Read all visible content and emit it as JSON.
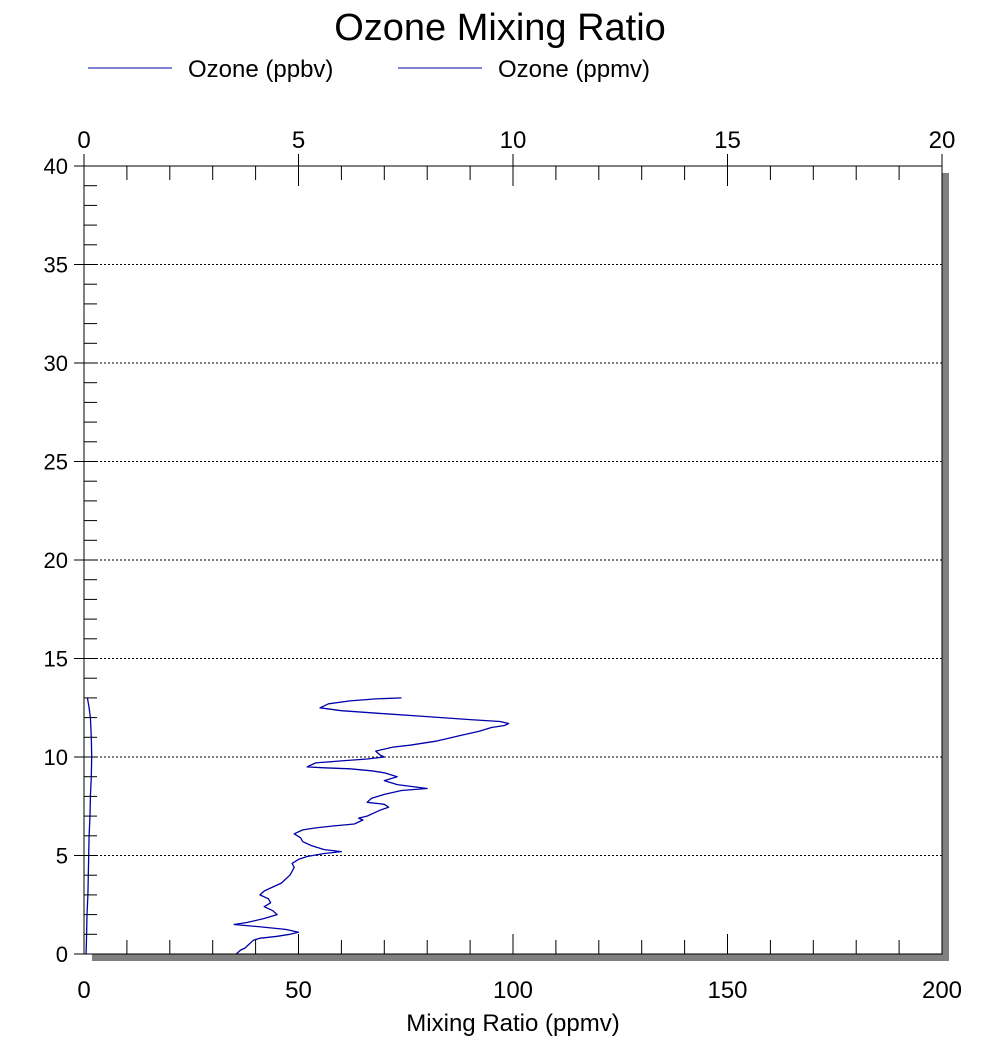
{
  "chart_data": {
    "type": "line",
    "title": "Ozone Mixing Ratio",
    "xlabel": "Mixing Ratio (ppmv)",
    "ylabel": "",
    "x_bottom": {
      "lim": [
        0,
        200
      ],
      "ticks": [
        0,
        50,
        100,
        150,
        200
      ],
      "minor_step": 10
    },
    "x_top": {
      "lim": [
        0,
        20
      ],
      "ticks": [
        0,
        5,
        10,
        15,
        20
      ],
      "minor_step": 1
    },
    "y": {
      "lim": [
        0,
        40
      ],
      "ticks": [
        0,
        5,
        10,
        15,
        20,
        25,
        30,
        35,
        40
      ],
      "minor_step": 1
    },
    "grid": "horizontal-dotted",
    "legend_position": "top",
    "colors": {
      "series": "#0000aa",
      "grid": "#000000",
      "shadow": "#808080"
    },
    "series": [
      {
        "name": "Ozone (ppbv)",
        "axis": "bottom",
        "color": "#0000aa",
        "points": [
          [
            35.5,
            0.0
          ],
          [
            36.0,
            0.1
          ],
          [
            36.5,
            0.2
          ],
          [
            37.5,
            0.3
          ],
          [
            38.0,
            0.4
          ],
          [
            38.5,
            0.5
          ],
          [
            39.0,
            0.6
          ],
          [
            39.5,
            0.7
          ],
          [
            41.0,
            0.8
          ],
          [
            43.0,
            0.85
          ],
          [
            45.0,
            0.9
          ],
          [
            48.0,
            1.0
          ],
          [
            50.0,
            1.1
          ],
          [
            47.0,
            1.25
          ],
          [
            40.0,
            1.4
          ],
          [
            35.0,
            1.5
          ],
          [
            38.0,
            1.6
          ],
          [
            42.0,
            1.8
          ],
          [
            45.0,
            2.0
          ],
          [
            44.0,
            2.2
          ],
          [
            42.0,
            2.4
          ],
          [
            43.5,
            2.6
          ],
          [
            43.0,
            2.8
          ],
          [
            41.0,
            3.0
          ],
          [
            42.0,
            3.2
          ],
          [
            44.0,
            3.4
          ],
          [
            46.0,
            3.6
          ],
          [
            47.0,
            3.8
          ],
          [
            48.0,
            4.0
          ],
          [
            48.5,
            4.2
          ],
          [
            49.0,
            4.4
          ],
          [
            48.5,
            4.6
          ],
          [
            50.0,
            4.8
          ],
          [
            52.0,
            4.95
          ],
          [
            56.0,
            5.1
          ],
          [
            60.0,
            5.2
          ],
          [
            56.0,
            5.3
          ],
          [
            53.0,
            5.5
          ],
          [
            51.0,
            5.7
          ],
          [
            50.5,
            5.9
          ],
          [
            49.0,
            6.1
          ],
          [
            51.0,
            6.3
          ],
          [
            54.0,
            6.4
          ],
          [
            58.0,
            6.5
          ],
          [
            63.0,
            6.6
          ],
          [
            65.0,
            6.8
          ],
          [
            64.0,
            6.9
          ],
          [
            66.0,
            7.0
          ],
          [
            68.0,
            7.2
          ],
          [
            69.0,
            7.3
          ],
          [
            71.0,
            7.45
          ],
          [
            70.0,
            7.6
          ],
          [
            66.0,
            7.7
          ],
          [
            67.0,
            7.9
          ],
          [
            70.0,
            8.1
          ],
          [
            74.0,
            8.3
          ],
          [
            80.0,
            8.4
          ],
          [
            73.0,
            8.6
          ],
          [
            70.0,
            8.8
          ],
          [
            73.0,
            9.0
          ],
          [
            70.0,
            9.2
          ],
          [
            67.0,
            9.3
          ],
          [
            62.0,
            9.4
          ],
          [
            56.0,
            9.45
          ],
          [
            52.0,
            9.5
          ],
          [
            54.0,
            9.7
          ],
          [
            60.0,
            9.8
          ],
          [
            66.0,
            9.9
          ],
          [
            70.0,
            10.0
          ],
          [
            69.0,
            10.1
          ],
          [
            68.0,
            10.3
          ],
          [
            72.0,
            10.5
          ],
          [
            76.0,
            10.6
          ],
          [
            82.0,
            10.8
          ],
          [
            86.0,
            11.0
          ],
          [
            88.0,
            11.1
          ],
          [
            92.0,
            11.3
          ],
          [
            95.0,
            11.5
          ],
          [
            98.0,
            11.6
          ],
          [
            99.0,
            11.7
          ],
          [
            97.0,
            11.8
          ],
          [
            90.0,
            11.9
          ],
          [
            80.0,
            12.05
          ],
          [
            70.0,
            12.2
          ],
          [
            60.0,
            12.35
          ],
          [
            55.0,
            12.5
          ],
          [
            57.0,
            12.7
          ],
          [
            62.0,
            12.85
          ],
          [
            68.0,
            12.95
          ],
          [
            74.0,
            13.0
          ]
        ]
      },
      {
        "name": "Ozone (ppmv)",
        "axis": "top",
        "color": "#0000aa",
        "points": [
          [
            0.05,
            0.0
          ],
          [
            0.06,
            1.0
          ],
          [
            0.07,
            2.0
          ],
          [
            0.09,
            3.0
          ],
          [
            0.1,
            4.0
          ],
          [
            0.11,
            5.0
          ],
          [
            0.12,
            6.0
          ],
          [
            0.14,
            7.0
          ],
          [
            0.15,
            8.0
          ],
          [
            0.17,
            9.0
          ],
          [
            0.18,
            10.0
          ],
          [
            0.17,
            11.0
          ],
          [
            0.15,
            12.0
          ],
          [
            0.12,
            12.5
          ],
          [
            0.08,
            13.0
          ]
        ]
      }
    ]
  }
}
